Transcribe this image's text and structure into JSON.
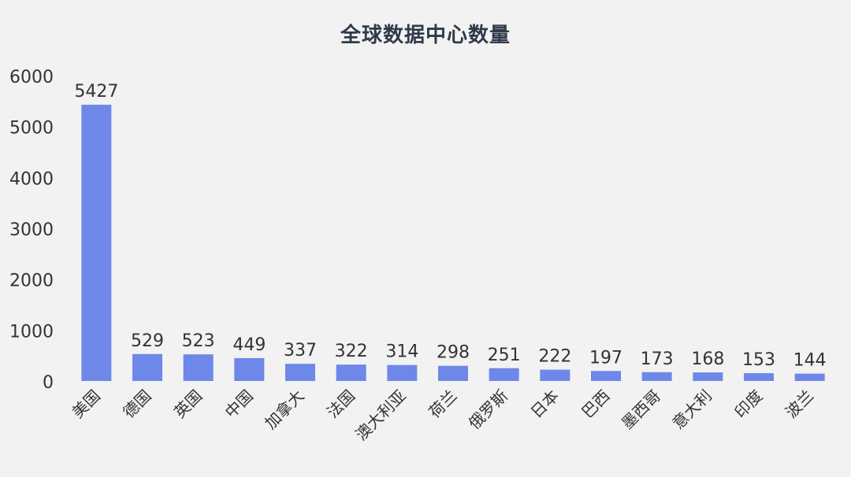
{
  "chart_data": {
    "type": "bar",
    "title": "全球数据中心数量",
    "xlabel": "",
    "ylabel": "",
    "categories": [
      "美国",
      "德国",
      "英国",
      "中国",
      "加拿大",
      "法国",
      "澳大利亚",
      "荷兰",
      "俄罗斯",
      "日本",
      "巴西",
      "墨西哥",
      "意大利",
      "印度",
      "波兰"
    ],
    "values": [
      5427,
      529,
      523,
      449,
      337,
      322,
      314,
      298,
      251,
      222,
      197,
      173,
      168,
      153,
      144
    ],
    "yticks": [
      0,
      1000,
      2000,
      3000,
      4000,
      5000,
      6000
    ],
    "ylim": [
      0,
      6000
    ],
    "grid": false,
    "legend": "none",
    "bar_color": "#6d88e8",
    "text_color": "#333333"
  }
}
